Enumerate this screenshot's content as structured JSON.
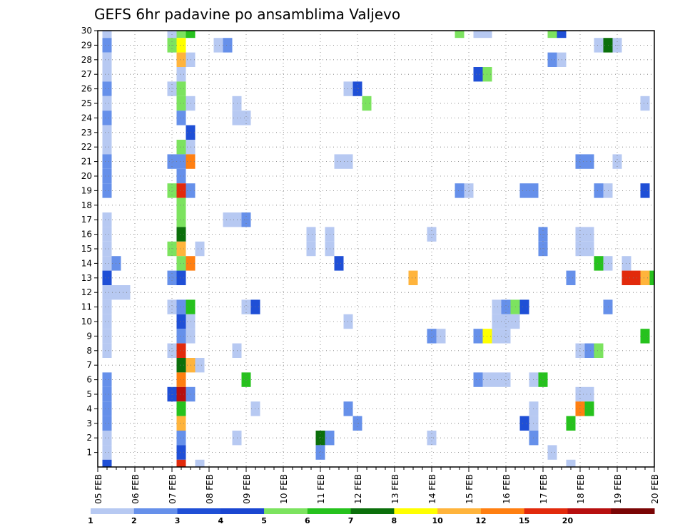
{
  "chart_data": {
    "type": "heatmap",
    "title": "GEFS 6hr padavine po ansamblima Valjevo",
    "x_tick_labels": [
      "05 FEB",
      "06 FEB",
      "07 FEB",
      "08 FEB",
      "09 FEB",
      "10 FEB",
      "11 FEB",
      "12 FEB",
      "13 FEB",
      "14 FEB",
      "15 FEB",
      "16 FEB",
      "17 FEB",
      "18 FEB",
      "19 FEB",
      "20 FEB"
    ],
    "y_tick_labels": [
      "1",
      "2",
      "3",
      "4",
      "5",
      "6",
      "7",
      "8",
      "9",
      "10",
      "11",
      "12",
      "13",
      "14",
      "15",
      "16",
      "17",
      "18",
      "19",
      "20",
      "21",
      "22",
      "23",
      "24",
      "25",
      "26",
      "27",
      "28",
      "29",
      "30"
    ],
    "xlim": [
      0,
      60
    ],
    "ylim": [
      0,
      30
    ],
    "x_step_hours": 6,
    "grid": true,
    "legend_position": "bottom",
    "colorbar": {
      "levels": [
        "1",
        "2",
        "3",
        "4",
        "5",
        "6",
        "7",
        "8",
        "10",
        "12",
        "15",
        "20"
      ],
      "colors": [
        "#b7c9f2",
        "#6690ea",
        "#1f4fd6",
        "#1a46d1",
        "#7ce35f",
        "#26c21d",
        "#0b6f0b",
        "#ffff00",
        "#ffb43c",
        "#ff7f11",
        "#e22a0c",
        "#b70f0f",
        "#7a0505"
      ]
    },
    "cells": [
      [
        1,
        30,
        0
      ],
      [
        1,
        29,
        1
      ],
      [
        1,
        28,
        0
      ],
      [
        1,
        27,
        0
      ],
      [
        1,
        26,
        1
      ],
      [
        1,
        25,
        0
      ],
      [
        1,
        24,
        1
      ],
      [
        1,
        23,
        0
      ],
      [
        1,
        22,
        0
      ],
      [
        1,
        21,
        1
      ],
      [
        1,
        20,
        1
      ],
      [
        1,
        19,
        1
      ],
      [
        1,
        17,
        0
      ],
      [
        1,
        16,
        0
      ],
      [
        1,
        15,
        0
      ],
      [
        1,
        14,
        0
      ],
      [
        1,
        13,
        2
      ],
      [
        1,
        12,
        0
      ],
      [
        1,
        11,
        0
      ],
      [
        1,
        10,
        0
      ],
      [
        1,
        9,
        0
      ],
      [
        1,
        8,
        0
      ],
      [
        1,
        6,
        1
      ],
      [
        1,
        5,
        1
      ],
      [
        1,
        4,
        1
      ],
      [
        1,
        3,
        1
      ],
      [
        1,
        2,
        0
      ],
      [
        1,
        1,
        0
      ],
      [
        1,
        0,
        2
      ],
      [
        2,
        14,
        1
      ],
      [
        2,
        12,
        0
      ],
      [
        3,
        12,
        0
      ],
      [
        8,
        30,
        0
      ],
      [
        8,
        29,
        4
      ],
      [
        8,
        26,
        0
      ],
      [
        8,
        21,
        1
      ],
      [
        8,
        19,
        4
      ],
      [
        8,
        15,
        4
      ],
      [
        8,
        13,
        1
      ],
      [
        8,
        11,
        0
      ],
      [
        8,
        8,
        0
      ],
      [
        8,
        5,
        2
      ],
      [
        9,
        30,
        4
      ],
      [
        9,
        29,
        7
      ],
      [
        9,
        28,
        8
      ],
      [
        9,
        27,
        0
      ],
      [
        9,
        26,
        4
      ],
      [
        9,
        25,
        4
      ],
      [
        9,
        24,
        1
      ],
      [
        9,
        22,
        4
      ],
      [
        9,
        21,
        1
      ],
      [
        9,
        20,
        1
      ],
      [
        9,
        19,
        10
      ],
      [
        9,
        18,
        4
      ],
      [
        9,
        17,
        4
      ],
      [
        9,
        16,
        6
      ],
      [
        9,
        15,
        8
      ],
      [
        9,
        14,
        4
      ],
      [
        9,
        13,
        2
      ],
      [
        9,
        11,
        1
      ],
      [
        9,
        10,
        2
      ],
      [
        9,
        9,
        1
      ],
      [
        9,
        8,
        10
      ],
      [
        9,
        7,
        6
      ],
      [
        9,
        6,
        9
      ],
      [
        9,
        5,
        11
      ],
      [
        9,
        4,
        5
      ],
      [
        9,
        3,
        8
      ],
      [
        9,
        2,
        1
      ],
      [
        9,
        1,
        2
      ],
      [
        9,
        0,
        10
      ],
      [
        10,
        30,
        5
      ],
      [
        10,
        28,
        0
      ],
      [
        10,
        25,
        0
      ],
      [
        10,
        23,
        2
      ],
      [
        10,
        22,
        0
      ],
      [
        10,
        21,
        9
      ],
      [
        10,
        19,
        1
      ],
      [
        10,
        14,
        9
      ],
      [
        10,
        11,
        5
      ],
      [
        10,
        10,
        0
      ],
      [
        10,
        9,
        0
      ],
      [
        10,
        7,
        8
      ],
      [
        10,
        5,
        1
      ],
      [
        11,
        15,
        0
      ],
      [
        11,
        7,
        0
      ],
      [
        11,
        0,
        0
      ],
      [
        13,
        29,
        0
      ],
      [
        14,
        29,
        1
      ],
      [
        14,
        17,
        0
      ],
      [
        15,
        25,
        0
      ],
      [
        15,
        24,
        0
      ],
      [
        15,
        17,
        0
      ],
      [
        15,
        8,
        0
      ],
      [
        15,
        2,
        0
      ],
      [
        16,
        24,
        0
      ],
      [
        16,
        17,
        1
      ],
      [
        16,
        11,
        0
      ],
      [
        16,
        6,
        5
      ],
      [
        17,
        11,
        2
      ],
      [
        17,
        4,
        0
      ],
      [
        23,
        16,
        0
      ],
      [
        23,
        15,
        0
      ],
      [
        24,
        2,
        6
      ],
      [
        24,
        1,
        1
      ],
      [
        25,
        16,
        0
      ],
      [
        25,
        15,
        0
      ],
      [
        25,
        2,
        1
      ],
      [
        26,
        21,
        0
      ],
      [
        26,
        14,
        2
      ],
      [
        27,
        21,
        0
      ],
      [
        27,
        10,
        0
      ],
      [
        27,
        4,
        1
      ],
      [
        27,
        26,
        0
      ],
      [
        28,
        26,
        2
      ],
      [
        28,
        3,
        1
      ],
      [
        29,
        25,
        4
      ],
      [
        34,
        13,
        8
      ],
      [
        36,
        16,
        0
      ],
      [
        36,
        9,
        1
      ],
      [
        36,
        2,
        0
      ],
      [
        37,
        9,
        0
      ],
      [
        39,
        30,
        4
      ],
      [
        39,
        19,
        1
      ],
      [
        40,
        19,
        0
      ],
      [
        41,
        30,
        0
      ],
      [
        41,
        27,
        2
      ],
      [
        41,
        9,
        1
      ],
      [
        41,
        6,
        1
      ],
      [
        42,
        30,
        0
      ],
      [
        42,
        27,
        4
      ],
      [
        42,
        9,
        7
      ],
      [
        42,
        6,
        0
      ],
      [
        43,
        11,
        0
      ],
      [
        43,
        10,
        0
      ],
      [
        43,
        9,
        0
      ],
      [
        43,
        6,
        0
      ],
      [
        44,
        11,
        1
      ],
      [
        44,
        10,
        0
      ],
      [
        44,
        9,
        0
      ],
      [
        44,
        6,
        0
      ],
      [
        45,
        11,
        4
      ],
      [
        45,
        10,
        0
      ],
      [
        46,
        19,
        1
      ],
      [
        46,
        11,
        2
      ],
      [
        46,
        3,
        2
      ],
      [
        47,
        19,
        1
      ],
      [
        47,
        6,
        0
      ],
      [
        47,
        4,
        0
      ],
      [
        47,
        3,
        0
      ],
      [
        47,
        2,
        1
      ],
      [
        48,
        16,
        1
      ],
      [
        48,
        15,
        1
      ],
      [
        48,
        6,
        5
      ],
      [
        49,
        30,
        4
      ],
      [
        49,
        28,
        1
      ],
      [
        49,
        1,
        0
      ],
      [
        50,
        30,
        2
      ],
      [
        50,
        28,
        0
      ],
      [
        51,
        13,
        1
      ],
      [
        51,
        3,
        5
      ],
      [
        51,
        0,
        0
      ],
      [
        52,
        21,
        1
      ],
      [
        52,
        16,
        0
      ],
      [
        52,
        15,
        0
      ],
      [
        52,
        8,
        0
      ],
      [
        52,
        5,
        0
      ],
      [
        52,
        4,
        9
      ],
      [
        53,
        21,
        1
      ],
      [
        53,
        16,
        0
      ],
      [
        53,
        15,
        0
      ],
      [
        53,
        8,
        1
      ],
      [
        53,
        5,
        0
      ],
      [
        53,
        4,
        5
      ],
      [
        54,
        29,
        0
      ],
      [
        54,
        19,
        1
      ],
      [
        54,
        14,
        5
      ],
      [
        54,
        8,
        4
      ],
      [
        55,
        29,
        6
      ],
      [
        55,
        19,
        0
      ],
      [
        55,
        14,
        0
      ],
      [
        55,
        11,
        1
      ],
      [
        56,
        29,
        0
      ],
      [
        56,
        21,
        0
      ],
      [
        57,
        14,
        0
      ],
      [
        57,
        13,
        10
      ],
      [
        58,
        13,
        10
      ],
      [
        59,
        25,
        0
      ],
      [
        59,
        19,
        2
      ],
      [
        59,
        13,
        8
      ],
      [
        59,
        9,
        5
      ],
      [
        60,
        13,
        5
      ]
    ]
  }
}
